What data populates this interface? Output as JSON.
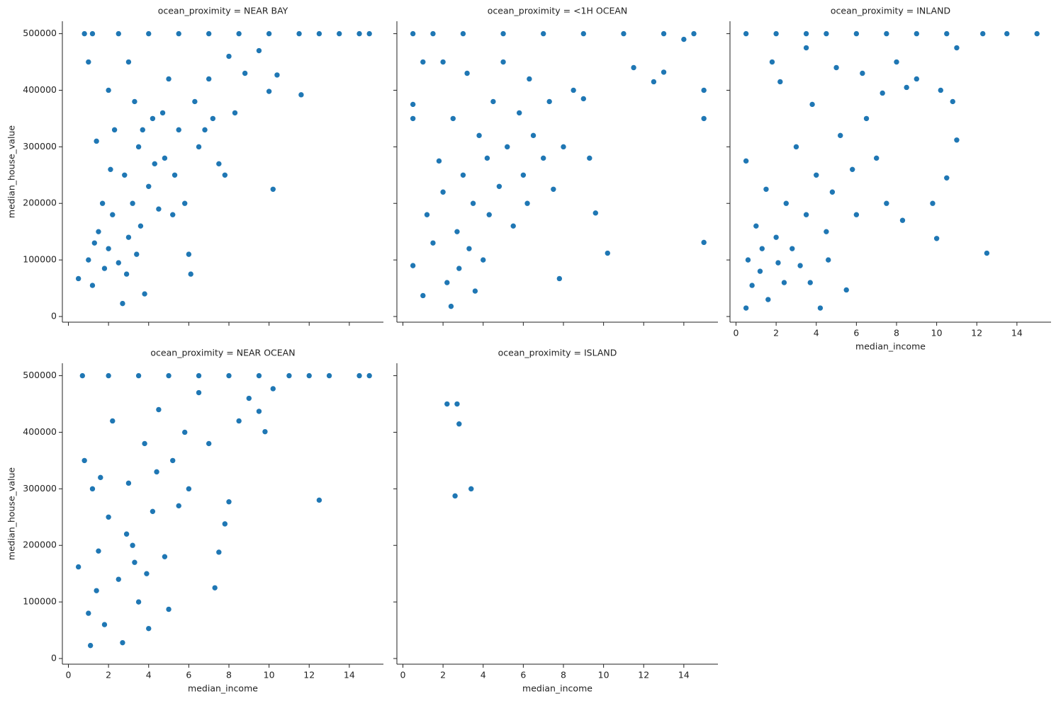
{
  "chart_data": [
    {
      "type": "scatter",
      "title": "ocean_proximity = NEAR BAY",
      "ylabel": "median_house_value",
      "xticklabels": false,
      "yticklabels": true,
      "color": "#1f77b4",
      "xlim": [
        -0.3,
        15.7
      ],
      "ylim": [
        -10000,
        522000
      ],
      "xticks": [
        0,
        2,
        4,
        6,
        8,
        10,
        12,
        14
      ],
      "yticks": [
        0,
        100000,
        200000,
        300000,
        400000,
        500000
      ],
      "x": [
        0.5,
        1.0,
        1.2,
        1.5,
        1.8,
        2.0,
        2.2,
        2.5,
        2.7,
        2.8,
        3.0,
        3.2,
        3.5,
        3.6,
        3.8,
        4.0,
        4.2,
        4.5,
        4.8,
        5.0,
        5.3,
        5.5,
        5.8,
        6.0,
        6.1,
        6.3,
        6.5,
        7.0,
        7.2,
        7.5,
        7.8,
        8.0,
        8.3,
        8.8,
        9.5,
        10.0,
        10.2,
        10.4,
        11.6,
        1.0,
        1.2,
        2.5,
        4.0,
        5.5,
        7.0,
        8.5,
        10.0,
        11.5,
        12.5,
        13.5,
        14.5,
        15.0,
        0.8,
        2.0,
        3.0,
        1.4,
        2.3,
        3.3,
        4.3,
        5.2,
        2.1,
        1.7,
        3.7,
        4.7,
        6.8,
        2.9,
        1.3,
        3.4
      ],
      "y": [
        67000,
        100000,
        55000,
        150000,
        85000,
        120000,
        180000,
        95000,
        23000,
        250000,
        140000,
        200000,
        300000,
        160000,
        40000,
        230000,
        350000,
        190000,
        280000,
        420000,
        250000,
        330000,
        200000,
        110000,
        75000,
        380000,
        300000,
        420000,
        350000,
        270000,
        250000,
        460000,
        360000,
        430000,
        470000,
        398000,
        225000,
        427000,
        392000,
        450000,
        500001,
        500001,
        500001,
        500001,
        500001,
        500001,
        500001,
        500001,
        500001,
        500001,
        500001,
        500001,
        500001,
        400000,
        450000,
        310000,
        330000,
        380000,
        270000,
        180000,
        260000,
        200000,
        330000,
        360000,
        330000,
        75000,
        130000,
        110000
      ]
    },
    {
      "type": "scatter",
      "title": "ocean_proximity = <1H OCEAN",
      "xticklabels": false,
      "yticklabels": false,
      "color": "#1f77b4",
      "xlim": [
        -0.3,
        15.7
      ],
      "ylim": [
        -10000,
        522000
      ],
      "xticks": [
        0,
        2,
        4,
        6,
        8,
        10,
        12,
        14
      ],
      "yticks": [
        0,
        100000,
        200000,
        300000,
        400000,
        500000
      ],
      "x": [
        0.5,
        0.5,
        0.5,
        1.0,
        1.2,
        1.5,
        1.8,
        2.0,
        2.2,
        2.4,
        2.5,
        2.7,
        3.0,
        3.2,
        3.5,
        3.8,
        4.0,
        4.2,
        4.5,
        4.8,
        5.0,
        5.2,
        5.5,
        5.8,
        6.0,
        6.3,
        6.5,
        7.0,
        7.3,
        7.5,
        7.8,
        8.0,
        8.5,
        9.0,
        9.3,
        9.6,
        10.2,
        11.5,
        12.5,
        13.0,
        14.0,
        15.0,
        15.0,
        15.0,
        0.5,
        1.5,
        3.0,
        5.0,
        7.0,
        9.0,
        11.0,
        13.0,
        14.5,
        1.0,
        2.0,
        3.3,
        4.3,
        6.2,
        2.8,
        3.6
      ],
      "y": [
        90000,
        350000,
        375000,
        37000,
        180000,
        130000,
        275000,
        220000,
        60000,
        18000,
        350000,
        150000,
        250000,
        430000,
        200000,
        320000,
        100000,
        280000,
        380000,
        230000,
        450000,
        300000,
        160000,
        360000,
        250000,
        420000,
        320000,
        280000,
        380000,
        225000,
        67000,
        300000,
        400000,
        385000,
        280000,
        183000,
        112000,
        440000,
        415000,
        432000,
        490000,
        400000,
        350000,
        131000,
        500001,
        500001,
        500001,
        500001,
        500001,
        500001,
        500001,
        500001,
        500001,
        450000,
        450000,
        120000,
        180000,
        200000,
        85000,
        45000
      ]
    },
    {
      "type": "scatter",
      "title": "ocean_proximity = INLAND",
      "xlabel": "median_income",
      "xticklabels": true,
      "yticklabels": false,
      "color": "#1f77b4",
      "xlim": [
        -0.3,
        15.7
      ],
      "ylim": [
        -10000,
        522000
      ],
      "xticks": [
        0,
        2,
        4,
        6,
        8,
        10,
        12,
        14
      ],
      "yticks": [
        0,
        100000,
        200000,
        300000,
        400000,
        500000
      ],
      "x": [
        0.5,
        0.5,
        0.6,
        0.8,
        1.0,
        1.2,
        1.5,
        1.6,
        1.8,
        2.0,
        2.2,
        2.4,
        2.5,
        2.8,
        3.0,
        3.2,
        3.5,
        3.8,
        4.0,
        4.2,
        4.5,
        4.8,
        5.0,
        5.2,
        5.5,
        5.8,
        6.0,
        6.3,
        6.5,
        7.0,
        7.3,
        7.5,
        8.0,
        8.3,
        8.5,
        9.0,
        9.8,
        10.0,
        10.2,
        10.5,
        10.8,
        11.0,
        11.0,
        12.5,
        0.5,
        2.0,
        3.5,
        4.5,
        6.0,
        7.5,
        9.0,
        10.5,
        12.3,
        13.5,
        15.0,
        3.5,
        1.3,
        2.1,
        3.7,
        4.6
      ],
      "y": [
        15000,
        275000,
        100000,
        55000,
        160000,
        80000,
        225000,
        30000,
        450000,
        140000,
        415000,
        60000,
        200000,
        120000,
        300000,
        90000,
        180000,
        375000,
        250000,
        15000,
        150000,
        220000,
        440000,
        320000,
        47000,
        260000,
        180000,
        430000,
        350000,
        280000,
        395000,
        200000,
        450000,
        170000,
        405000,
        420000,
        200000,
        138000,
        400000,
        245000,
        380000,
        475000,
        312000,
        112000,
        500001,
        500001,
        500001,
        500001,
        500001,
        500001,
        500001,
        500001,
        500001,
        500001,
        500001,
        475000,
        120000,
        95000,
        60000,
        100000
      ]
    },
    {
      "type": "scatter",
      "title": "ocean_proximity = NEAR OCEAN",
      "xlabel": "median_income",
      "ylabel": "median_house_value",
      "xticklabels": true,
      "yticklabels": true,
      "color": "#1f77b4",
      "xlim": [
        -0.3,
        15.7
      ],
      "ylim": [
        -10000,
        522000
      ],
      "xticks": [
        0,
        2,
        4,
        6,
        8,
        10,
        12,
        14
      ],
      "yticks": [
        0,
        100000,
        200000,
        300000,
        400000,
        500000
      ],
      "x": [
        0.5,
        0.7,
        0.8,
        1.0,
        1.1,
        1.2,
        1.5,
        1.8,
        2.0,
        2.2,
        2.5,
        2.7,
        3.0,
        3.2,
        3.5,
        3.8,
        4.0,
        4.2,
        4.5,
        4.8,
        5.0,
        5.2,
        5.5,
        5.8,
        6.0,
        6.5,
        7.0,
        7.3,
        7.5,
        7.8,
        8.0,
        8.5,
        9.0,
        9.5,
        9.8,
        10.2,
        12.5,
        2.0,
        3.5,
        5.0,
        6.5,
        8.0,
        9.5,
        11.0,
        12.0,
        13.0,
        14.5,
        15.0,
        1.6,
        2.9,
        3.9,
        4.4,
        1.4,
        3.3
      ],
      "y": [
        162000,
        500001,
        350000,
        80000,
        23000,
        300000,
        190000,
        60000,
        250000,
        420000,
        140000,
        28000,
        310000,
        200000,
        100000,
        380000,
        53000,
        260000,
        440000,
        180000,
        87000,
        350000,
        270000,
        400000,
        300000,
        470000,
        380000,
        125000,
        188000,
        238000,
        277000,
        420000,
        460000,
        437000,
        401000,
        477000,
        280000,
        500001,
        500001,
        500001,
        500001,
        500001,
        500001,
        500001,
        500001,
        500001,
        500001,
        500001,
        320000,
        220000,
        150000,
        330000,
        120000,
        170000
      ]
    },
    {
      "type": "scatter",
      "title": "ocean_proximity = ISLAND",
      "xlabel": "median_income",
      "xticklabels": true,
      "yticklabels": false,
      "color": "#1f77b4",
      "xlim": [
        -0.3,
        15.7
      ],
      "ylim": [
        -10000,
        522000
      ],
      "xticks": [
        0,
        2,
        4,
        6,
        8,
        10,
        12,
        14
      ],
      "yticks": [
        0,
        100000,
        200000,
        300000,
        400000,
        500000
      ],
      "x": [
        2.2,
        2.7,
        2.8,
        2.6,
        3.4
      ],
      "y": [
        450000,
        450000,
        414700,
        287500,
        300000
      ]
    }
  ]
}
